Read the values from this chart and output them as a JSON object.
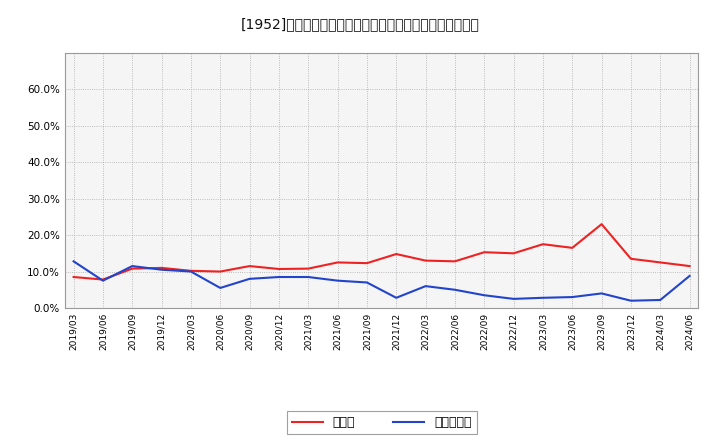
{
  "title": "[1952]　現領金、有利子負債の総資産に対する比率の推移",
  "x_labels": [
    "2019/03",
    "2019/06",
    "2019/09",
    "2019/12",
    "2020/03",
    "2020/06",
    "2020/09",
    "2020/12",
    "2021/03",
    "2021/06",
    "2021/09",
    "2021/12",
    "2022/03",
    "2022/06",
    "2022/09",
    "2022/12",
    "2023/03",
    "2023/06",
    "2023/09",
    "2023/12",
    "2024/03",
    "2024/06"
  ],
  "cash_values": [
    8.5,
    7.8,
    10.8,
    11.0,
    10.2,
    10.0,
    11.5,
    10.7,
    10.8,
    12.5,
    12.3,
    14.8,
    13.0,
    12.8,
    15.3,
    15.0,
    17.5,
    16.5,
    23.0,
    13.5,
    12.5,
    11.5
  ],
  "debt_values": [
    12.8,
    7.5,
    11.5,
    10.5,
    10.0,
    5.5,
    8.0,
    8.5,
    8.5,
    7.5,
    7.0,
    2.8,
    6.0,
    5.0,
    3.5,
    2.5,
    2.8,
    3.0,
    4.0,
    2.0,
    2.2,
    8.8
  ],
  "cash_color": "#ee2222",
  "debt_color": "#2244cc",
  "legend_cash": "現領金",
  "legend_debt": "有利子負債",
  "ylim_min": 0.0,
  "ylim_max": 70.0,
  "yticks": [
    0.0,
    10.0,
    20.0,
    30.0,
    40.0,
    50.0,
    60.0
  ],
  "background_color": "#ffffff",
  "grid_color": "#aaaaaa",
  "plot_bg_color": "#f5f5f5"
}
